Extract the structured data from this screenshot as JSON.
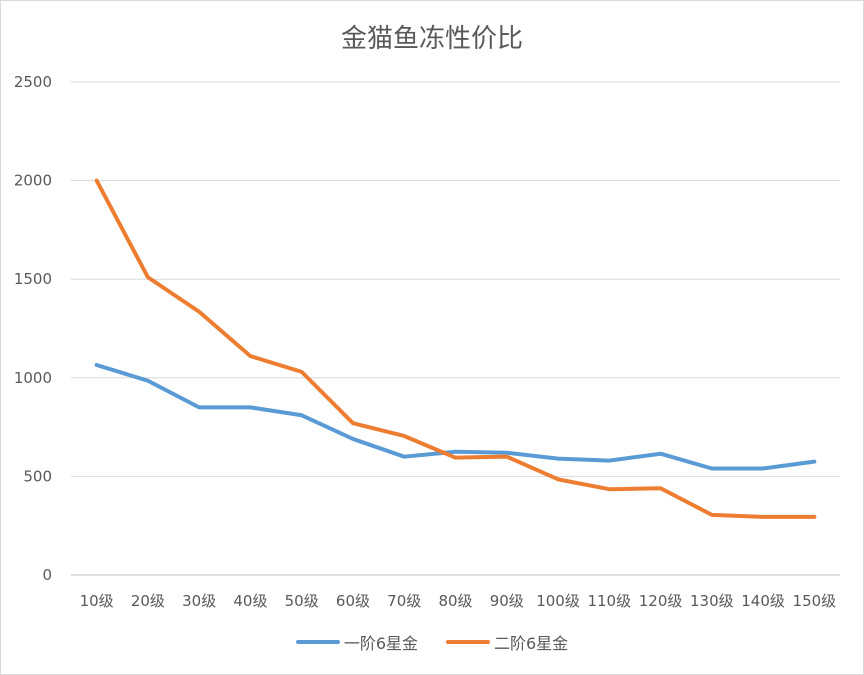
{
  "chart_data": {
    "type": "line",
    "title": "金猫鱼冻性价比",
    "xlabel": "",
    "ylabel": "",
    "categories": [
      "10级",
      "20级",
      "30级",
      "40级",
      "50级",
      "60级",
      "70级",
      "80级",
      "90级",
      "100级",
      "110级",
      "120级",
      "130级",
      "140级",
      "150级"
    ],
    "ylim": [
      0,
      2500
    ],
    "yticks": [
      "0",
      "500",
      "1000",
      "1500",
      "2000",
      "2500"
    ],
    "grid": true,
    "legend_position": "bottom",
    "series": [
      {
        "name": "一阶6星金",
        "color": "#5b9bd5",
        "values": [
          1065,
          985,
          850,
          850,
          810,
          690,
          600,
          625,
          620,
          590,
          580,
          615,
          540,
          540,
          575
        ]
      },
      {
        "name": "二阶6星金",
        "color": "#ed7d31",
        "values": [
          2000,
          1510,
          1335,
          1110,
          1030,
          770,
          705,
          595,
          600,
          485,
          435,
          440,
          305,
          295,
          295
        ]
      }
    ]
  }
}
